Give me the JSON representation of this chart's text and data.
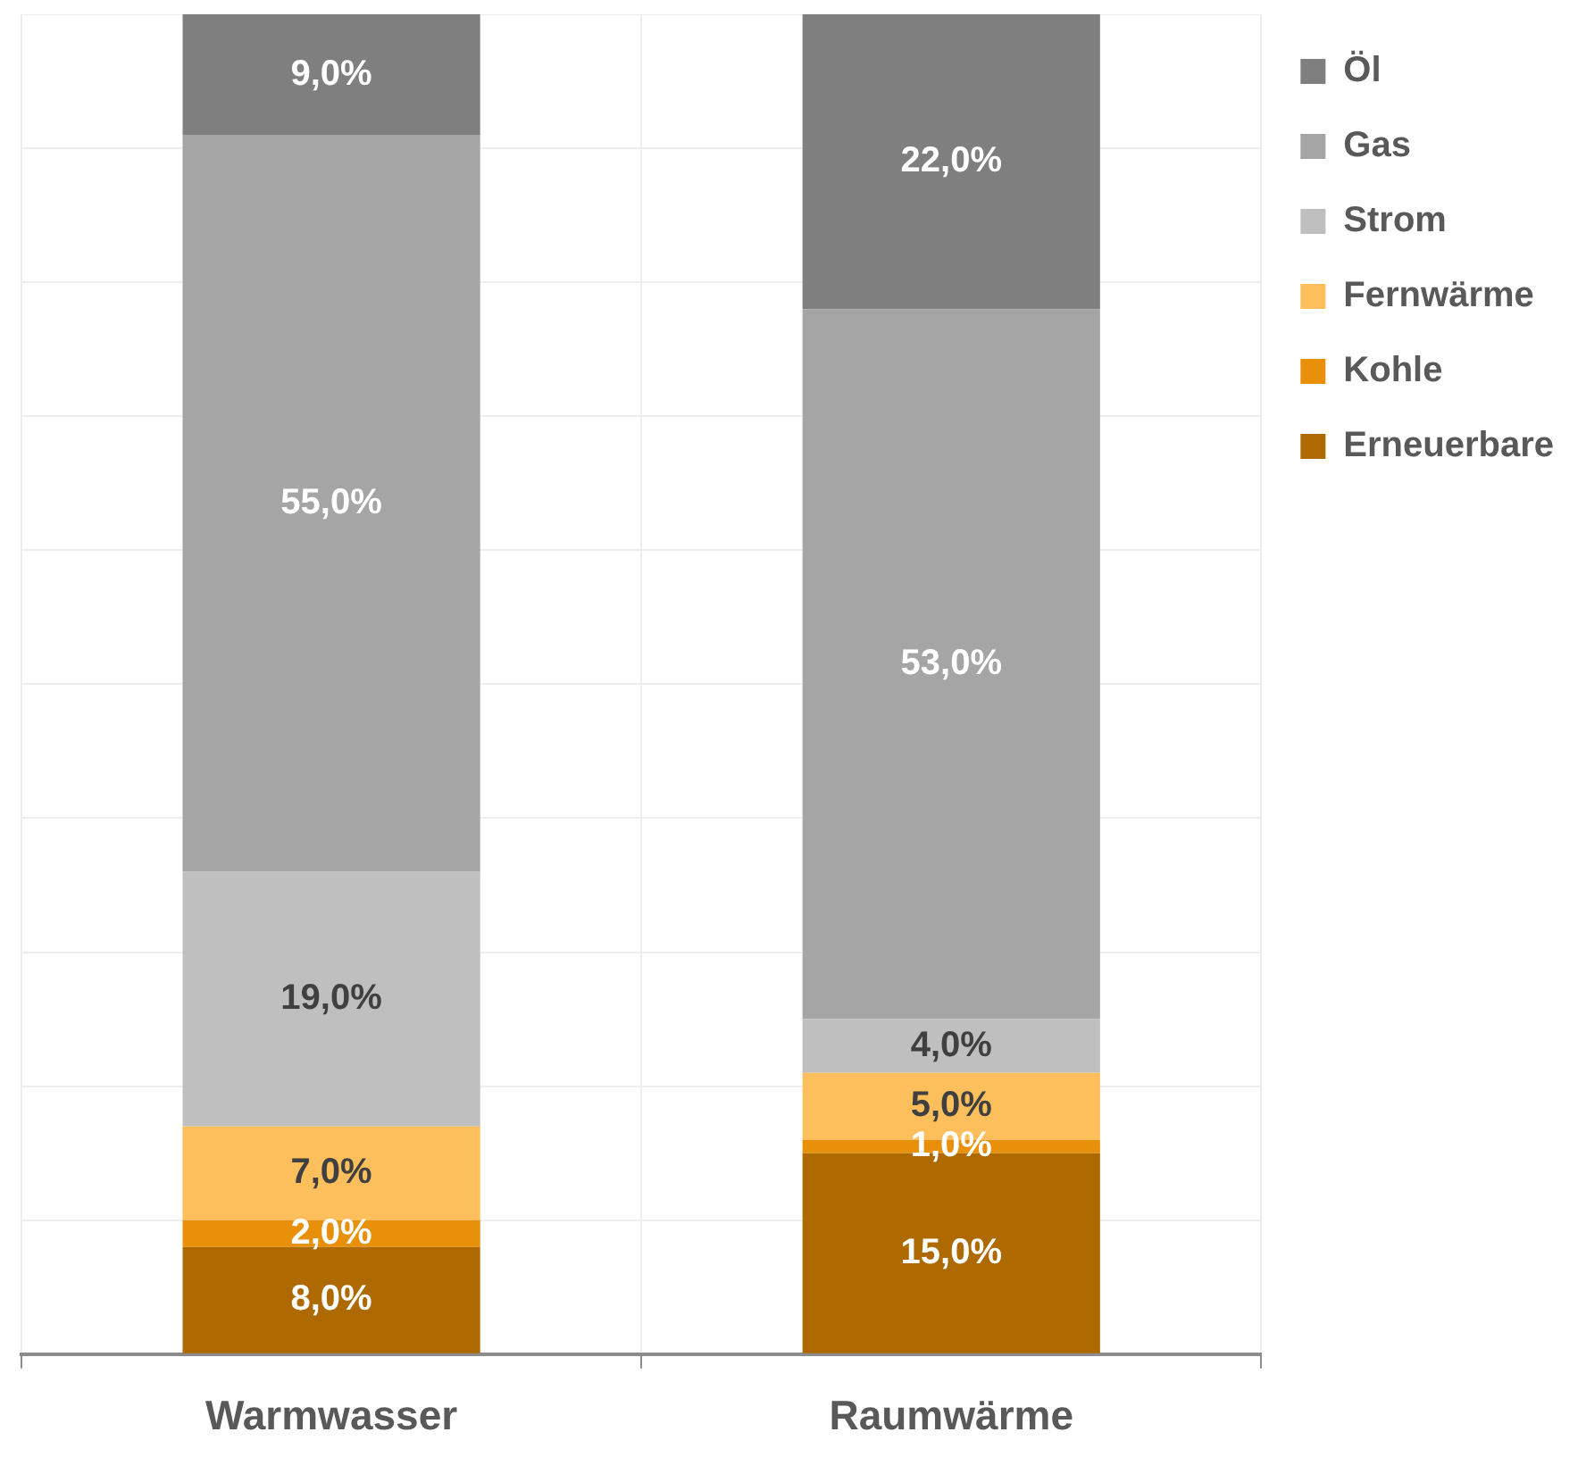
{
  "chart_data": {
    "type": "bar",
    "stacked": true,
    "categories": [
      "Warmwasser",
      "Raumwärme"
    ],
    "series": [
      {
        "name": "Erneuerbare",
        "color": "#ae6a00",
        "values": [
          8,
          15
        ],
        "value_labels": [
          "8,0%",
          "15,0%"
        ]
      },
      {
        "name": "Kohle",
        "color": "#e8900a",
        "values": [
          2,
          1
        ],
        "value_labels": [
          "2,0%",
          "1,0%"
        ]
      },
      {
        "name": "Fernwärme",
        "color": "#fdbf5b",
        "values": [
          7,
          5
        ],
        "value_labels": [
          "7,0%",
          "5,0%"
        ]
      },
      {
        "name": "Strom",
        "color": "#bfbfbf",
        "values": [
          19,
          4
        ],
        "value_labels": [
          "19,0%",
          "4,0%"
        ]
      },
      {
        "name": "Gas",
        "color": "#a5a5a5",
        "values": [
          55,
          53
        ],
        "value_labels": [
          "55,0%",
          "53,0%"
        ]
      },
      {
        "name": "Öl",
        "color": "#7f7f7f",
        "values": [
          9,
          22
        ],
        "value_labels": [
          "9,0%",
          "22,0%"
        ]
      }
    ],
    "ylim": [
      0,
      100
    ],
    "yticks": [
      {
        "value": 0,
        "label": null
      },
      {
        "value": 10,
        "label": null
      },
      {
        "value": 20,
        "label": null
      },
      {
        "value": 30,
        "label": null
      },
      {
        "value": 40,
        "label": null
      },
      {
        "value": 50,
        "label": null
      },
      {
        "value": 60,
        "label": null
      },
      {
        "value": 70,
        "label": null
      },
      {
        "value": 80,
        "label": null
      },
      {
        "value": 90,
        "label": null
      },
      {
        "value": 100,
        "label": null
      }
    ],
    "tick_labels": "x",
    "grid": true,
    "legend": "right"
  }
}
